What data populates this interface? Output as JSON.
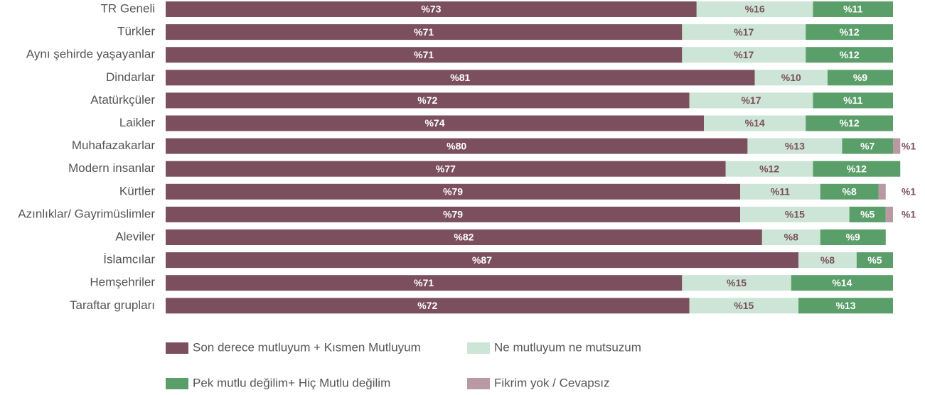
{
  "chart_data": {
    "type": "stacked_bar_horizontal",
    "categories": [
      "TR Geneli",
      "Türkler",
      "Aynı şehirde yaşayanlar",
      "Dindarlar",
      "Atatürkçüler",
      "Laikler",
      "Muhafazakarlar",
      "Modern insanlar",
      "Kürtler",
      "Azınlıklar/ Gayrimüslimler",
      "Aleviler",
      "İslamcılar",
      "Hemşehriler",
      "Taraftar grupları"
    ],
    "xlim": [
      0,
      100
    ],
    "series": [
      {
        "name": "Son derece mutluyum + Kısmen Mutluyum",
        "color": "#7b4f5e",
        "values": [
          73,
          71,
          71,
          81,
          72,
          74,
          80,
          77,
          79,
          79,
          82,
          87,
          71,
          72
        ],
        "value_labels": [
          "%73",
          "%71",
          "%71",
          "%81",
          "%72",
          "%74",
          "%80",
          "%77",
          "%79",
          "%79",
          "%82",
          "%87",
          "%71",
          "%72"
        ]
      },
      {
        "name": "Ne mutluyum ne mutsuzum",
        "color": "#cce5d6",
        "values": [
          16,
          17,
          17,
          10,
          17,
          14,
          13,
          12,
          11,
          15,
          8,
          8,
          15,
          15
        ],
        "value_labels": [
          "%16",
          "%17",
          "%17",
          "%10",
          "%17",
          "%14",
          "%13",
          "%12",
          "%11",
          "%15",
          "%8",
          "%8",
          "%15",
          "%15"
        ]
      },
      {
        "name": "Pek mutlu değilim+ Hiç Mutlu değilim",
        "color": "#5a9e6a",
        "values": [
          11,
          12,
          12,
          9,
          11,
          12,
          7,
          12,
          8,
          5,
          9,
          5,
          14,
          13
        ],
        "value_labels": [
          "%11",
          "%12",
          "%12",
          "%9",
          "%11",
          "%12",
          "%7",
          "%12",
          "%8",
          "%5",
          "%9",
          "%5",
          "%14",
          "%13"
        ]
      },
      {
        "name": "Fikrim yok / Cevapsız",
        "color": "#b99aa3",
        "values": [
          null,
          null,
          null,
          null,
          null,
          null,
          1,
          null,
          1,
          1,
          null,
          null,
          null,
          null
        ],
        "value_labels": [
          null,
          null,
          null,
          null,
          null,
          null,
          "%1",
          null,
          "%1",
          "%1",
          null,
          null,
          null,
          null
        ]
      }
    ]
  }
}
